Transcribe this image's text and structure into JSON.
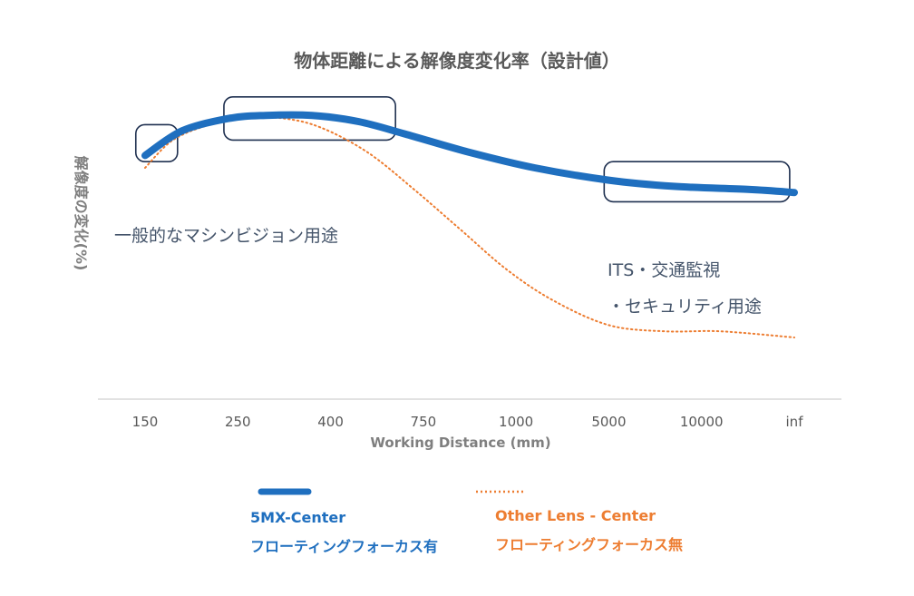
{
  "chart_data": {
    "type": "line",
    "title": "物体距離による解像度変化率（設計値）",
    "xlabel": "Working Distance (mm)",
    "ylabel": "解像度の変化(%)",
    "categories": [
      "150",
      "250",
      "400",
      "750",
      "1000",
      "5000",
      "10000",
      "inf"
    ],
    "ylim": [
      0,
      100
    ],
    "grid": false,
    "legend_position": "bottom",
    "series": [
      {
        "name": "5MX-Center",
        "sublabel": "フローティングフォーカス有",
        "color": "#1f6fbf",
        "style": "solid",
        "x": [
          0,
          0.4,
          0.9,
          1.3,
          1.8,
          2.3,
          2.8,
          3.5,
          4.2,
          5.0,
          5.7,
          6.5,
          7.0
        ],
        "values": [
          79,
          87,
          91,
          92,
          92,
          90,
          86,
          80,
          75,
          71,
          69,
          68,
          67
        ]
      },
      {
        "name": "Other Lens - Center",
        "sublabel": "フローティングフォーカス無",
        "color": "#ed7d31",
        "style": "dotted",
        "x": [
          0,
          0.3,
          0.7,
          1.1,
          1.5,
          1.9,
          2.4,
          2.9,
          3.4,
          3.9,
          4.4,
          5.0,
          5.6,
          6.2,
          7.0
        ],
        "values": [
          75,
          84,
          89,
          91,
          91,
          88,
          80,
          68,
          55,
          42,
          32,
          24,
          22,
          22,
          20
        ]
      }
    ],
    "annotations": [
      {
        "text": "一般的なマシンビジョン用途"
      },
      {
        "text": "ITS・交通監視"
      },
      {
        "text": "・セキュリティ用途"
      }
    ],
    "highlight_boxes": [
      {
        "x_range": [
          -0.1,
          0.35
        ],
        "y_range": [
          77,
          89
        ]
      },
      {
        "x_range": [
          0.85,
          2.7
        ],
        "y_range": [
          84,
          98
        ]
      },
      {
        "x_range": [
          4.95,
          6.95
        ],
        "y_range": [
          64,
          77
        ]
      }
    ]
  }
}
